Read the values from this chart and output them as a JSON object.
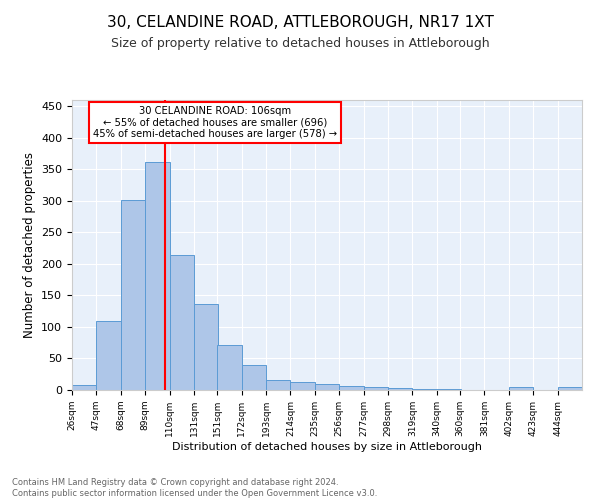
{
  "title": "30, CELANDINE ROAD, ATTLEBOROUGH, NR17 1XT",
  "subtitle": "Size of property relative to detached houses in Attleborough",
  "xlabel": "Distribution of detached houses by size in Attleborough",
  "ylabel": "Number of detached properties",
  "footer_line1": "Contains HM Land Registry data © Crown copyright and database right 2024.",
  "footer_line2": "Contains public sector information licensed under the Open Government Licence v3.0.",
  "bin_labels": [
    "26sqm",
    "47sqm",
    "68sqm",
    "89sqm",
    "110sqm",
    "131sqm",
    "151sqm",
    "172sqm",
    "193sqm",
    "214sqm",
    "235sqm",
    "256sqm",
    "277sqm",
    "298sqm",
    "319sqm",
    "340sqm",
    "360sqm",
    "381sqm",
    "402sqm",
    "423sqm",
    "444sqm"
  ],
  "bin_edges": [
    26,
    47,
    68,
    89,
    110,
    131,
    151,
    172,
    193,
    214,
    235,
    256,
    277,
    298,
    319,
    340,
    360,
    381,
    402,
    423,
    444
  ],
  "bar_heights": [
    8,
    109,
    301,
    362,
    214,
    137,
    71,
    39,
    16,
    12,
    10,
    7,
    5,
    3,
    2,
    1,
    0,
    0,
    5,
    0,
    5
  ],
  "bar_color": "#AEC6E8",
  "bar_edge_color": "#5B9BD5",
  "vline_x": 106,
  "vline_color": "red",
  "annotation_text": "30 CELANDINE ROAD: 106sqm\n← 55% of detached houses are smaller (696)\n45% of semi-detached houses are larger (578) →",
  "annotation_box_color": "white",
  "annotation_box_edge_color": "red",
  "ylim": [
    0,
    460
  ],
  "yticks": [
    0,
    50,
    100,
    150,
    200,
    250,
    300,
    350,
    400,
    450
  ],
  "background_color": "#E8F0FA",
  "title_fontsize": 11,
  "subtitle_fontsize": 9,
  "figsize": [
    6.0,
    5.0
  ],
  "dpi": 100
}
